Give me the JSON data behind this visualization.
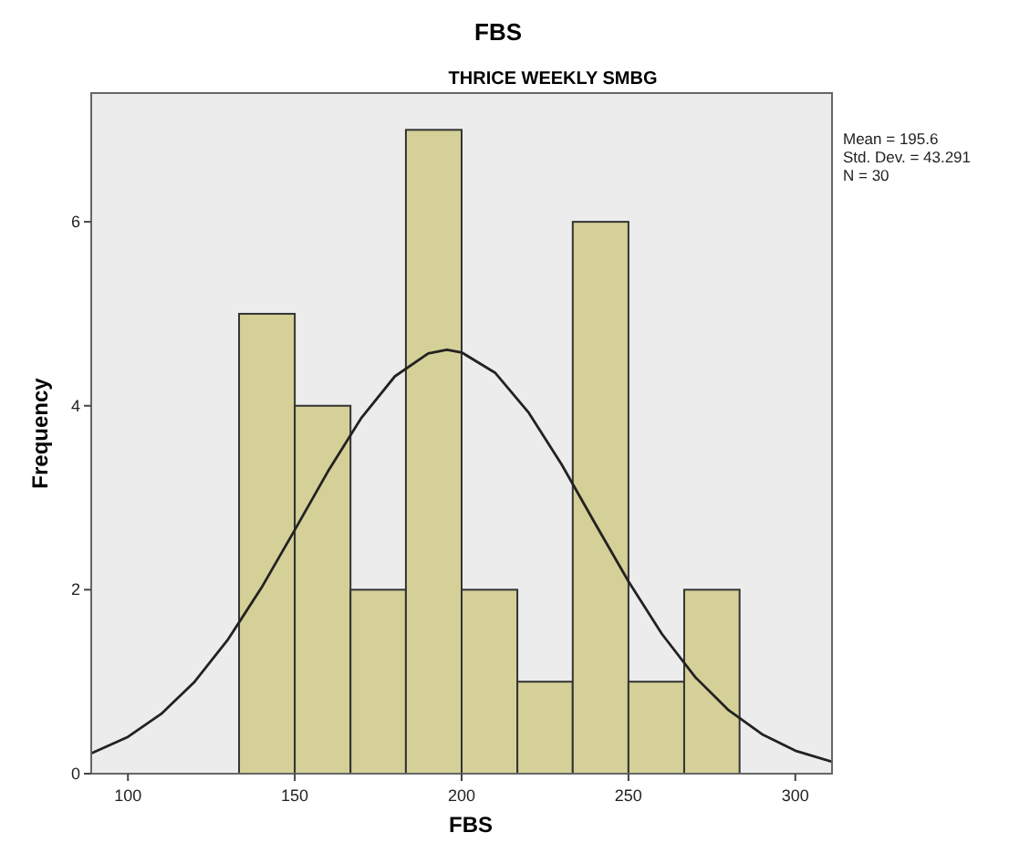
{
  "chart_data": {
    "type": "histogram",
    "title": "FBS",
    "subtitle": "THRICE WEEKLY SMBG",
    "xlabel": "FBS",
    "ylabel": "Frequency",
    "bins": [
      133.3,
      150,
      166.7,
      183.3,
      200,
      216.7,
      233.3,
      250,
      266.7,
      283.3
    ],
    "values": [
      5,
      4,
      2,
      7,
      2,
      1,
      6,
      1,
      2
    ],
    "color": "#d4d098",
    "series": [
      {
        "type": "line",
        "color": "#222222",
        "x": [
          89,
          100,
          110,
          120,
          130,
          140,
          150,
          160,
          170,
          180,
          190,
          195.6,
          200,
          210,
          220,
          230,
          240,
          250,
          260,
          270,
          280,
          290,
          300,
          311
        ],
        "values": [
          0.22,
          0.4,
          0.65,
          1.0,
          1.46,
          2.02,
          2.65,
          3.29,
          3.87,
          4.32,
          4.57,
          4.61,
          4.58,
          4.36,
          3.93,
          3.36,
          2.72,
          2.09,
          1.52,
          1.05,
          0.69,
          0.43,
          0.25,
          0.13
        ]
      }
    ],
    "xlim": [
      89,
      311
    ],
    "xticks": [
      100,
      150,
      200,
      250,
      300
    ],
    "ylim": [
      0,
      7.4
    ],
    "yticks": [
      0,
      2,
      4,
      6
    ],
    "grid": false,
    "annotations": [
      "Mean = 195.6",
      "Std. Dev. = 43.291",
      "N = 30"
    ]
  }
}
